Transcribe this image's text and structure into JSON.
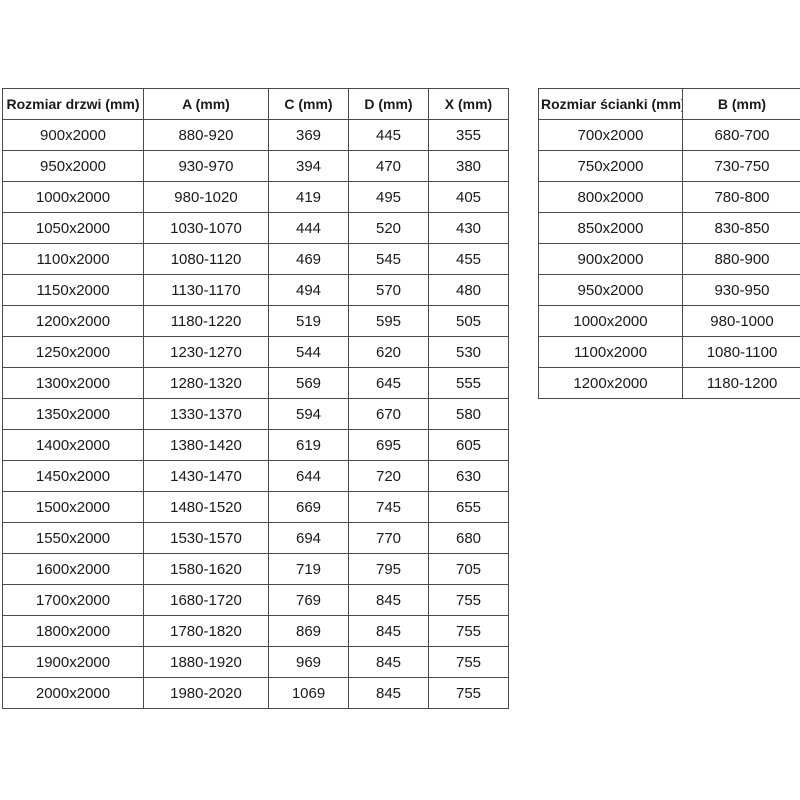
{
  "page": {
    "background_color": "#ffffff",
    "border_color": "#4a4a4a",
    "text_color": "#1a1a1a"
  },
  "door_table": {
    "headers": [
      "Rozmiar drzwi (mm)",
      "A (mm)",
      "C (mm)",
      "D (mm)",
      "X (mm)"
    ],
    "rows": [
      [
        "900x2000",
        "880-920",
        "369",
        "445",
        "355"
      ],
      [
        "950x2000",
        "930-970",
        "394",
        "470",
        "380"
      ],
      [
        "1000x2000",
        "980-1020",
        "419",
        "495",
        "405"
      ],
      [
        "1050x2000",
        "1030-1070",
        "444",
        "520",
        "430"
      ],
      [
        "1100x2000",
        "1080-1120",
        "469",
        "545",
        "455"
      ],
      [
        "1150x2000",
        "1130-1170",
        "494",
        "570",
        "480"
      ],
      [
        "1200x2000",
        "1180-1220",
        "519",
        "595",
        "505"
      ],
      [
        "1250x2000",
        "1230-1270",
        "544",
        "620",
        "530"
      ],
      [
        "1300x2000",
        "1280-1320",
        "569",
        "645",
        "555"
      ],
      [
        "1350x2000",
        "1330-1370",
        "594",
        "670",
        "580"
      ],
      [
        "1400x2000",
        "1380-1420",
        "619",
        "695",
        "605"
      ],
      [
        "1450x2000",
        "1430-1470",
        "644",
        "720",
        "630"
      ],
      [
        "1500x2000",
        "1480-1520",
        "669",
        "745",
        "655"
      ],
      [
        "1550x2000",
        "1530-1570",
        "694",
        "770",
        "680"
      ],
      [
        "1600x2000",
        "1580-1620",
        "719",
        "795",
        "705"
      ],
      [
        "1700x2000",
        "1680-1720",
        "769",
        "845",
        "755"
      ],
      [
        "1800x2000",
        "1780-1820",
        "869",
        "845",
        "755"
      ],
      [
        "1900x2000",
        "1880-1920",
        "969",
        "845",
        "755"
      ],
      [
        "2000x2000",
        "1980-2020",
        "1069",
        "845",
        "755"
      ]
    ]
  },
  "wall_table": {
    "headers": [
      "Rozmiar ścianki (mm)",
      "B (mm)"
    ],
    "rows": [
      [
        "700x2000",
        "680-700"
      ],
      [
        "750x2000",
        "730-750"
      ],
      [
        "800x2000",
        "780-800"
      ],
      [
        "850x2000",
        "830-850"
      ],
      [
        "900x2000",
        "880-900"
      ],
      [
        "950x2000",
        "930-950"
      ],
      [
        "1000x2000",
        "980-1000"
      ],
      [
        "1100x2000",
        "1080-1100"
      ],
      [
        "1200x2000",
        "1180-1200"
      ]
    ]
  }
}
